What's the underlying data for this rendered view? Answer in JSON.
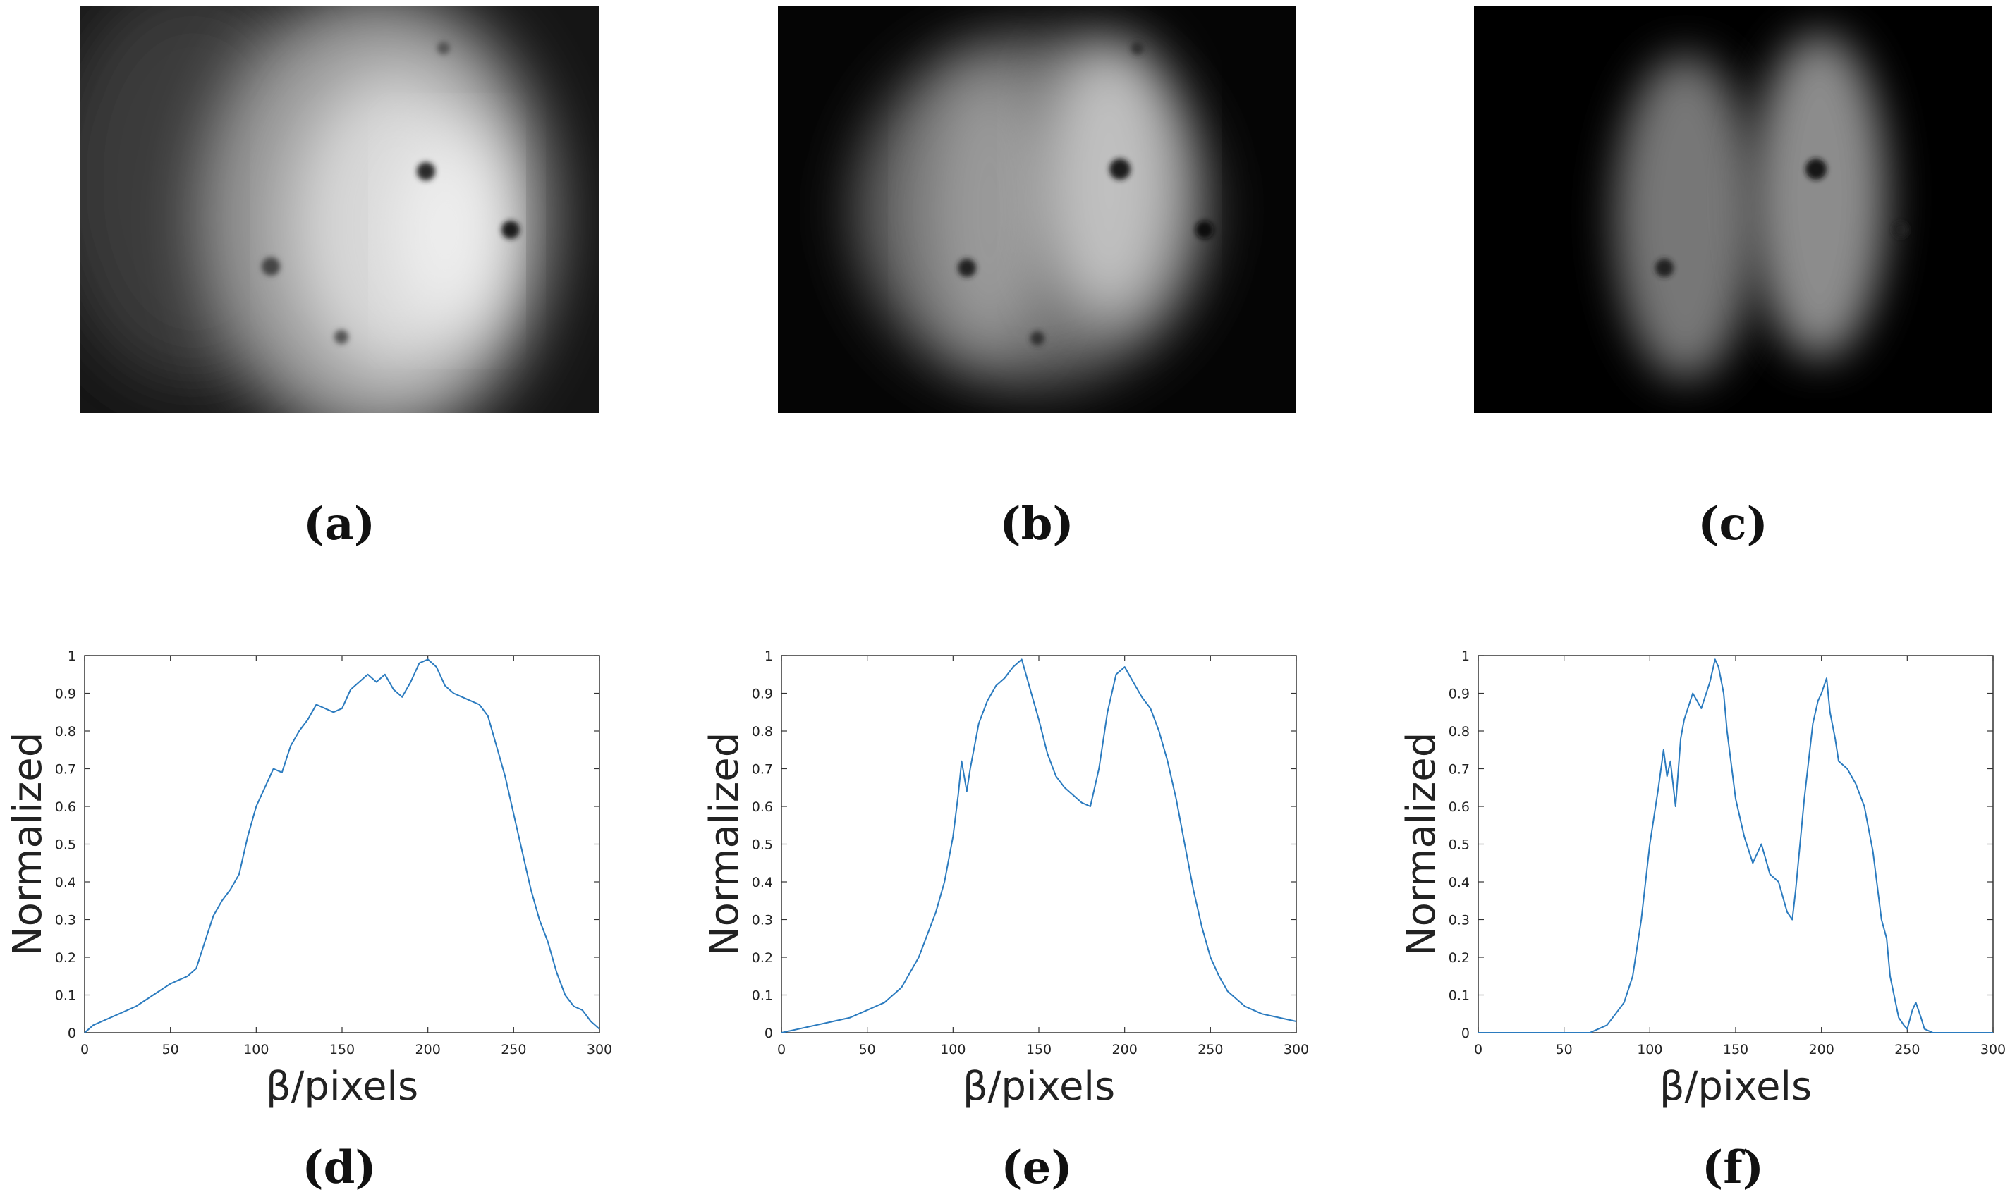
{
  "labels": {
    "a": "(a)",
    "b": "(b)",
    "c": "(c)",
    "d": "(d)",
    "e": "(e)",
    "f": "(f)"
  },
  "images": [
    {
      "id": "a",
      "description_icon": "grayscale-microscope-image"
    },
    {
      "id": "b",
      "description_icon": "grayscale-microscope-image"
    },
    {
      "id": "c",
      "description_icon": "grayscale-microscope-image"
    }
  ],
  "colors": {
    "line": "#2b7bbf",
    "axis": "#333333"
  },
  "chart_data": [
    {
      "type": "line",
      "panel": "d",
      "xlabel": "β/pixels",
      "ylabel": "Normalized",
      "xlim": [
        0,
        300
      ],
      "ylim": [
        0,
        1
      ],
      "xticks": [
        "0",
        "50",
        "100",
        "150",
        "200",
        "250",
        "300"
      ],
      "yticks": [
        "0",
        "0.1",
        "0.2",
        "0.3",
        "0.4",
        "0.5",
        "0.6",
        "0.7",
        "0.8",
        "0.9",
        "1"
      ],
      "grid": false,
      "x": [
        0,
        5,
        10,
        20,
        30,
        40,
        50,
        60,
        65,
        70,
        75,
        80,
        85,
        90,
        95,
        100,
        105,
        110,
        115,
        120,
        125,
        130,
        135,
        140,
        145,
        150,
        155,
        160,
        165,
        170,
        175,
        180,
        185,
        190,
        195,
        200,
        205,
        210,
        215,
        220,
        225,
        230,
        235,
        240,
        245,
        250,
        255,
        260,
        265,
        270,
        275,
        280,
        285,
        290,
        295,
        300
      ],
      "y": [
        0.0,
        0.02,
        0.03,
        0.05,
        0.07,
        0.1,
        0.13,
        0.15,
        0.17,
        0.24,
        0.31,
        0.35,
        0.38,
        0.42,
        0.52,
        0.6,
        0.65,
        0.7,
        0.69,
        0.76,
        0.8,
        0.83,
        0.87,
        0.86,
        0.85,
        0.86,
        0.91,
        0.93,
        0.95,
        0.93,
        0.95,
        0.91,
        0.89,
        0.93,
        0.98,
        0.99,
        0.97,
        0.92,
        0.9,
        0.89,
        0.88,
        0.87,
        0.84,
        0.76,
        0.68,
        0.58,
        0.48,
        0.38,
        0.3,
        0.24,
        0.16,
        0.1,
        0.07,
        0.06,
        0.03,
        0.01
      ]
    },
    {
      "type": "line",
      "panel": "e",
      "xlabel": "β/pixels",
      "ylabel": "Normalized",
      "xlim": [
        0,
        300
      ],
      "ylim": [
        0,
        1
      ],
      "xticks": [
        "0",
        "50",
        "100",
        "150",
        "200",
        "250",
        "300"
      ],
      "yticks": [
        "0",
        "0.1",
        "0.2",
        "0.3",
        "0.4",
        "0.5",
        "0.6",
        "0.7",
        "0.8",
        "0.9",
        "1"
      ],
      "grid": false,
      "x": [
        0,
        10,
        20,
        30,
        40,
        50,
        60,
        70,
        80,
        90,
        95,
        100,
        103,
        105,
        108,
        110,
        115,
        120,
        125,
        130,
        135,
        140,
        145,
        150,
        155,
        160,
        165,
        170,
        175,
        180,
        185,
        190,
        195,
        200,
        205,
        210,
        215,
        220,
        225,
        230,
        235,
        240,
        245,
        250,
        255,
        260,
        270,
        280,
        290,
        300
      ],
      "y": [
        0.0,
        0.01,
        0.02,
        0.03,
        0.04,
        0.06,
        0.08,
        0.12,
        0.2,
        0.32,
        0.4,
        0.52,
        0.63,
        0.72,
        0.64,
        0.7,
        0.82,
        0.88,
        0.92,
        0.94,
        0.97,
        0.99,
        0.91,
        0.83,
        0.74,
        0.68,
        0.65,
        0.63,
        0.61,
        0.6,
        0.7,
        0.85,
        0.95,
        0.97,
        0.93,
        0.89,
        0.86,
        0.8,
        0.72,
        0.62,
        0.5,
        0.38,
        0.28,
        0.2,
        0.15,
        0.11,
        0.07,
        0.05,
        0.04,
        0.03
      ]
    },
    {
      "type": "line",
      "panel": "f",
      "xlabel": "β/pixels",
      "ylabel": "Normalized",
      "xlim": [
        0,
        300
      ],
      "ylim": [
        0,
        1
      ],
      "xticks": [
        "0",
        "50",
        "100",
        "150",
        "200",
        "250",
        "300"
      ],
      "yticks": [
        "0",
        "0.1",
        "0.2",
        "0.3",
        "0.4",
        "0.5",
        "0.6",
        "0.7",
        "0.8",
        "0.9",
        "1"
      ],
      "grid": false,
      "x": [
        0,
        40,
        60,
        65,
        70,
        75,
        80,
        85,
        90,
        95,
        100,
        105,
        108,
        110,
        112,
        115,
        118,
        120,
        125,
        130,
        135,
        138,
        140,
        143,
        145,
        150,
        155,
        160,
        165,
        170,
        175,
        180,
        183,
        185,
        190,
        195,
        198,
        200,
        203,
        205,
        208,
        210,
        215,
        220,
        225,
        230,
        235,
        238,
        240,
        245,
        248,
        250,
        253,
        255,
        258,
        260,
        265,
        270,
        280,
        300
      ],
      "y": [
        0.0,
        0.0,
        0.0,
        0.0,
        0.01,
        0.02,
        0.05,
        0.08,
        0.15,
        0.3,
        0.5,
        0.65,
        0.75,
        0.68,
        0.72,
        0.6,
        0.78,
        0.83,
        0.9,
        0.86,
        0.93,
        0.99,
        0.97,
        0.9,
        0.8,
        0.62,
        0.52,
        0.45,
        0.5,
        0.42,
        0.4,
        0.32,
        0.3,
        0.38,
        0.62,
        0.82,
        0.88,
        0.9,
        0.94,
        0.85,
        0.78,
        0.72,
        0.7,
        0.66,
        0.6,
        0.48,
        0.3,
        0.25,
        0.15,
        0.04,
        0.02,
        0.01,
        0.06,
        0.08,
        0.04,
        0.01,
        0.0,
        0.0,
        0.0,
        0.0
      ]
    }
  ]
}
